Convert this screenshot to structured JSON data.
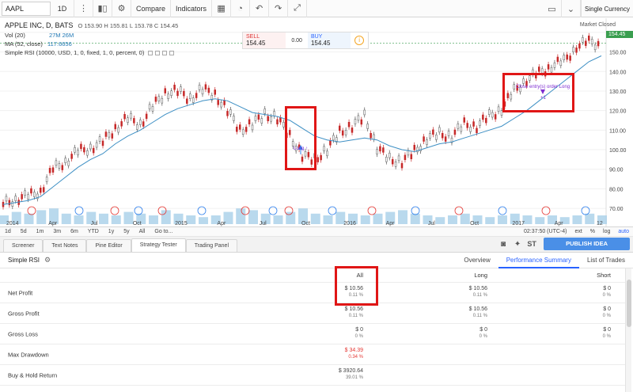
{
  "toolbar": {
    "symbol": "AAPL",
    "interval": "1D",
    "compare_label": "Compare",
    "indicators_label": "Indicators",
    "currency_label": "Single Currency"
  },
  "chart": {
    "title": "APPLE INC, D, BATS",
    "ohlc": "O 153.90  H 155.81  L 153.78  C 154.45",
    "vol_line_label": "Vol (20)",
    "vol_line_values": "27M  26M",
    "ma_line_label": "MA (52, close)",
    "ma_line_value": "117.6656",
    "rsi_line_label": "Simple RSI (10000, USD, 1, 0, fixed, 1, 0, percent, 0)",
    "sell_label": "SELL",
    "sell_price": "154.45",
    "spread": "0.00",
    "buy_label": "BUY",
    "buy_price": "154.45",
    "market_status": "Market Closed",
    "last_price_tag": "154.45",
    "time_stamp": "02:37:50 (UTC-4)",
    "annot_long": "Long ↑",
    "annot_close": "Close entry(s) order Long ↑",
    "annot_tp": "+1"
  },
  "chart_data": {
    "type": "line",
    "title": "APPLE INC, D, BATS",
    "x_ticks": [
      "2014",
      "Apr",
      "Jul",
      "Oct",
      "2015",
      "Apr",
      "Jul",
      "Oct",
      "2016",
      "Apr",
      "Jul",
      "Oct",
      "2017",
      "Apr",
      "12"
    ],
    "y_ticks": [
      160,
      150,
      140,
      130,
      120,
      110,
      100,
      90,
      80,
      70
    ],
    "ylim": [
      66,
      164
    ],
    "series": [
      {
        "name": "",
        "values": [
          72,
          75,
          76,
          79,
          90,
          94,
          99,
          101,
          104,
          111,
          116,
          113,
          122,
          129,
          130,
          126,
          131,
          128,
          120,
          110,
          113,
          118,
          116,
          107,
          97,
          95,
          100,
          109,
          112,
          117,
          101,
          95,
          94,
          99,
          106,
          108,
          107,
          113,
          112,
          117,
          121,
          130,
          136,
          139,
          143,
          145,
          153,
          155,
          154
        ]
      },
      {
        "name": "",
        "values": [
          72,
          73,
          74,
          76,
          81,
          86,
          91,
          95,
          98,
          103,
          107,
          110,
          114,
          118,
          121,
          123,
          125,
          126,
          125,
          122,
          119,
          118,
          117,
          115,
          111,
          107,
          105,
          104,
          105,
          106,
          105,
          102,
          100,
          99,
          101,
          103,
          104,
          106,
          108,
          110,
          112,
          116,
          120,
          125,
          130,
          135,
          140,
          145,
          148
        ]
      }
    ],
    "volume_values": [
      5,
      7,
      6,
      8,
      9,
      6,
      5,
      7,
      6,
      5,
      7,
      6,
      5,
      8,
      6,
      5,
      4,
      5,
      7,
      9,
      8,
      6,
      5,
      7,
      9,
      6,
      5,
      7,
      6,
      5,
      6,
      7,
      8,
      6,
      5,
      4,
      5,
      6,
      5,
      4,
      5,
      6,
      5,
      4,
      5,
      4,
      5,
      6,
      5
    ],
    "grid": true
  },
  "rangebar": {
    "ranges": [
      "1d",
      "5d",
      "1m",
      "3m",
      "6m",
      "YTD",
      "1y",
      "5y",
      "All",
      "Go to..."
    ],
    "time": "02:37:50 (UTC-4)",
    "right": [
      "ext",
      "%",
      "log",
      "auto"
    ]
  },
  "tabs": [
    "Screener",
    "Text Notes",
    "Pine Editor",
    "Strategy Tester",
    "Trading Panel"
  ],
  "active_tab": "Strategy Tester",
  "publish_label": "PUBLISH IDEA",
  "tester": {
    "strategy_name": "Simple RSI",
    "views": [
      "Overview",
      "Performance Summary",
      "List of Trades"
    ],
    "active_view": "Performance Summary",
    "columns": [
      "All",
      "Long",
      "Short"
    ],
    "rows": [
      {
        "label": "Net Profit",
        "all": "$ 10.56",
        "all_pct": "0.11 %",
        "long": "$ 10.56",
        "long_pct": "0.11 %",
        "short": "$ 0",
        "short_pct": "0 %"
      },
      {
        "label": "Gross Profit",
        "all": "$ 10.56",
        "all_pct": "0.11 %",
        "long": "$ 10.56",
        "long_pct": "0.11 %",
        "short": "$ 0",
        "short_pct": "0 %"
      },
      {
        "label": "Gross Loss",
        "all": "$ 0",
        "all_pct": "0 %",
        "long": "$ 0",
        "long_pct": "0 %",
        "short": "$ 0",
        "short_pct": "0 %"
      },
      {
        "label": "Max Drawdown",
        "all": "$ 34.39",
        "all_pct": "0.34 %",
        "long": "",
        "long_pct": "",
        "short": "",
        "short_pct": ""
      },
      {
        "label": "Buy & Hold Return",
        "all": "$ 3920.64",
        "all_pct": "39.01 %",
        "long": "",
        "long_pct": "",
        "short": "",
        "short_pct": ""
      }
    ]
  },
  "colors": {
    "ma_line": "#3d8fc4",
    "annotation_box": "#e01616",
    "accent": "#2962ff",
    "last_price": "#3a9e4f"
  }
}
